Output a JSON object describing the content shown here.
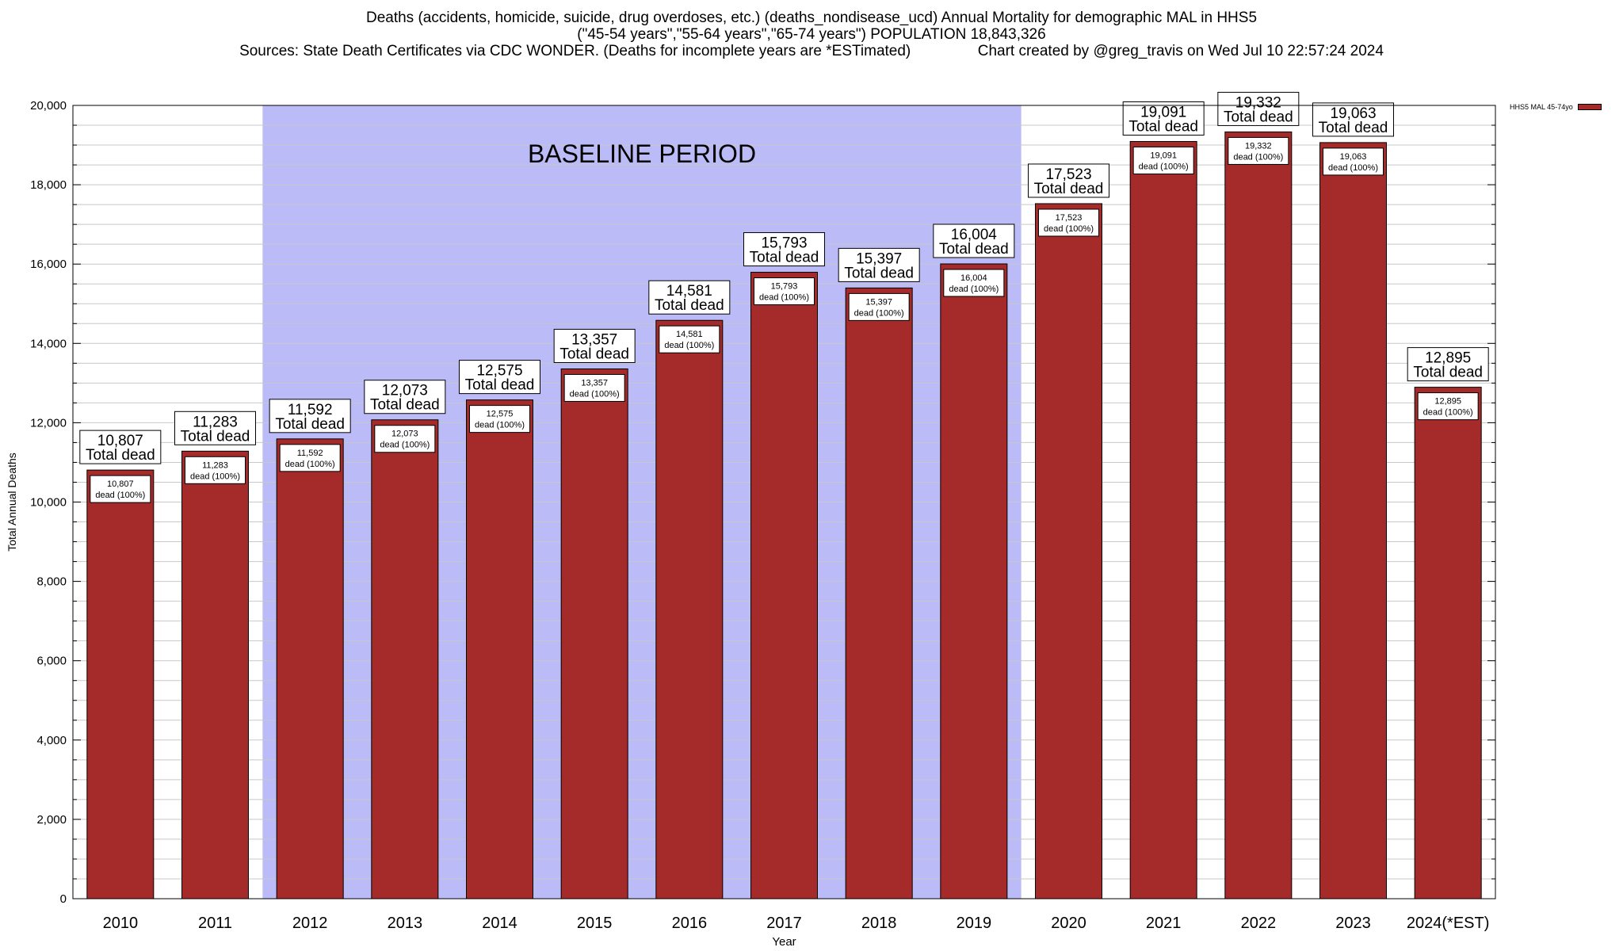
{
  "header": {
    "title_line1": "Deaths (accidents, homicide, suicide, drug overdoses, etc.) (deaths_nondisease_ucd) Annual Mortality for demographic MAL in HHS5",
    "title_line2": "(\"45-54 years\",\"55-64 years\",\"65-74 years\") POPULATION 18,843,326",
    "title_line3": "Sources: State Death Certificates via CDC WONDER. (Deaths for incomplete years are *ESTimated)                Chart created by @greg_travis on Wed Jul 10 22:57:24 2024"
  },
  "chart_data": {
    "type": "bar",
    "title": "Deaths (accidents, homicide, suicide, drug overdoses, etc.) (deaths_nondisease_ucd) Annual Mortality for demographic MAL in HHS5",
    "xlabel": "Year",
    "ylabel": "Total Annual Deaths",
    "ylim": [
      0,
      20000
    ],
    "yticks": [
      0,
      2000,
      4000,
      6000,
      8000,
      10000,
      12000,
      14000,
      16000,
      18000,
      20000
    ],
    "ytick_labels": [
      "0",
      "2,000",
      "4,000",
      "6,000",
      "8,000",
      "10,000",
      "12,000",
      "14,000",
      "16,000",
      "18,000",
      "20,000"
    ],
    "grid": true,
    "legend_position": "top-right",
    "categories": [
      "2010",
      "2011",
      "2012",
      "2013",
      "2014",
      "2015",
      "2016",
      "2017",
      "2018",
      "2019",
      "2020",
      "2021",
      "2022",
      "2023",
      "2024(*EST)"
    ],
    "series": [
      {
        "name": "HHS5 MAL 45-74yo",
        "color": "#a52a2a",
        "values": [
          10807,
          11283,
          11592,
          12073,
          12575,
          13357,
          14581,
          15793,
          15397,
          16004,
          17523,
          19091,
          19332,
          19063,
          12895
        ]
      }
    ],
    "value_labels": [
      "10,807",
      "11,283",
      "11,592",
      "12,073",
      "12,575",
      "13,357",
      "14,581",
      "15,793",
      "15,397",
      "16,004",
      "17,523",
      "19,091",
      "19,332",
      "19,063",
      "12,895"
    ],
    "total_caption": "Total dead",
    "inner_caption": "dead (100%)",
    "baseline_period": {
      "label": "BASELINE PERIOD",
      "start": "2012",
      "end": "2019",
      "color": "#bbbbf7"
    }
  },
  "colors": {
    "bar": "#a52a2a",
    "baseline": "#bbbbf7",
    "grid": "#c8c8c8"
  }
}
